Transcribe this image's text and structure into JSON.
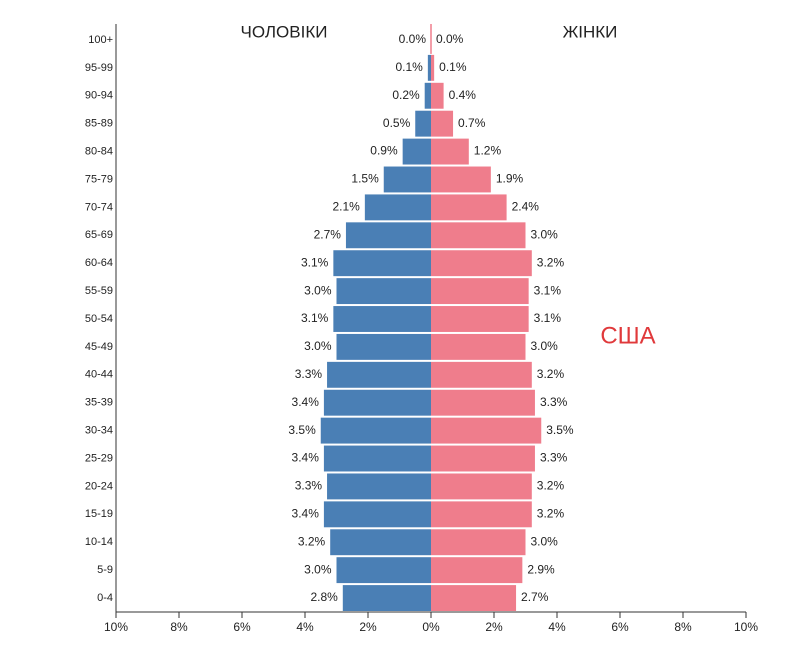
{
  "chart_data": {
    "type": "pyramid",
    "categories": [
      "100+",
      "95-99",
      "90-94",
      "85-89",
      "80-84",
      "75-79",
      "70-74",
      "65-69",
      "60-64",
      "55-59",
      "50-54",
      "45-49",
      "40-44",
      "35-39",
      "30-34",
      "25-29",
      "20-24",
      "15-19",
      "10-14",
      "5-9",
      "0-4"
    ],
    "series": [
      {
        "name": "ЧОЛОВІКИ",
        "color": "#4a7fb5",
        "side": "left",
        "values": [
          0.0,
          0.1,
          0.2,
          0.5,
          0.9,
          1.5,
          2.1,
          2.7,
          3.1,
          3.0,
          3.1,
          3.0,
          3.3,
          3.4,
          3.5,
          3.4,
          3.3,
          3.4,
          3.2,
          3.0,
          2.8
        ],
        "value_labels": [
          "0.0%",
          "0.1%",
          "0.2%",
          "0.5%",
          "0.9%",
          "1.5%",
          "2.1%",
          "2.7%",
          "3.1%",
          "3.0%",
          "3.1%",
          "3.0%",
          "3.3%",
          "3.4%",
          "3.5%",
          "3.4%",
          "3.3%",
          "3.4%",
          "3.2%",
          "3.0%",
          "2.8%"
        ]
      },
      {
        "name": "ЖІНКИ",
        "color": "#ef7d8c",
        "side": "right",
        "values": [
          0.0,
          0.1,
          0.4,
          0.7,
          1.2,
          1.9,
          2.4,
          3.0,
          3.2,
          3.1,
          3.1,
          3.0,
          3.2,
          3.3,
          3.5,
          3.3,
          3.2,
          3.2,
          3.0,
          2.9,
          2.7
        ],
        "value_labels": [
          "0.0%",
          "0.1%",
          "0.4%",
          "0.7%",
          "1.2%",
          "1.9%",
          "2.4%",
          "3.0%",
          "3.2%",
          "3.1%",
          "3.1%",
          "3.0%",
          "3.2%",
          "3.3%",
          "3.5%",
          "3.3%",
          "3.2%",
          "3.2%",
          "3.0%",
          "2.9%",
          "2.7%"
        ]
      }
    ],
    "xlim": [
      -10,
      10
    ],
    "xticks": [
      {
        "value": -10,
        "label": "10%"
      },
      {
        "value": -8,
        "label": "8%"
      },
      {
        "value": -6,
        "label": "6%"
      },
      {
        "value": -4,
        "label": "4%"
      },
      {
        "value": -2,
        "label": "2%"
      },
      {
        "value": 0,
        "label": "0%"
      },
      {
        "value": 2,
        "label": "2%"
      },
      {
        "value": 4,
        "label": "4%"
      },
      {
        "value": 6,
        "label": "6%"
      },
      {
        "value": 8,
        "label": "8%"
      },
      {
        "value": 10,
        "label": "10%"
      }
    ],
    "annotation": {
      "text": "США",
      "color": "#e0393b"
    }
  }
}
